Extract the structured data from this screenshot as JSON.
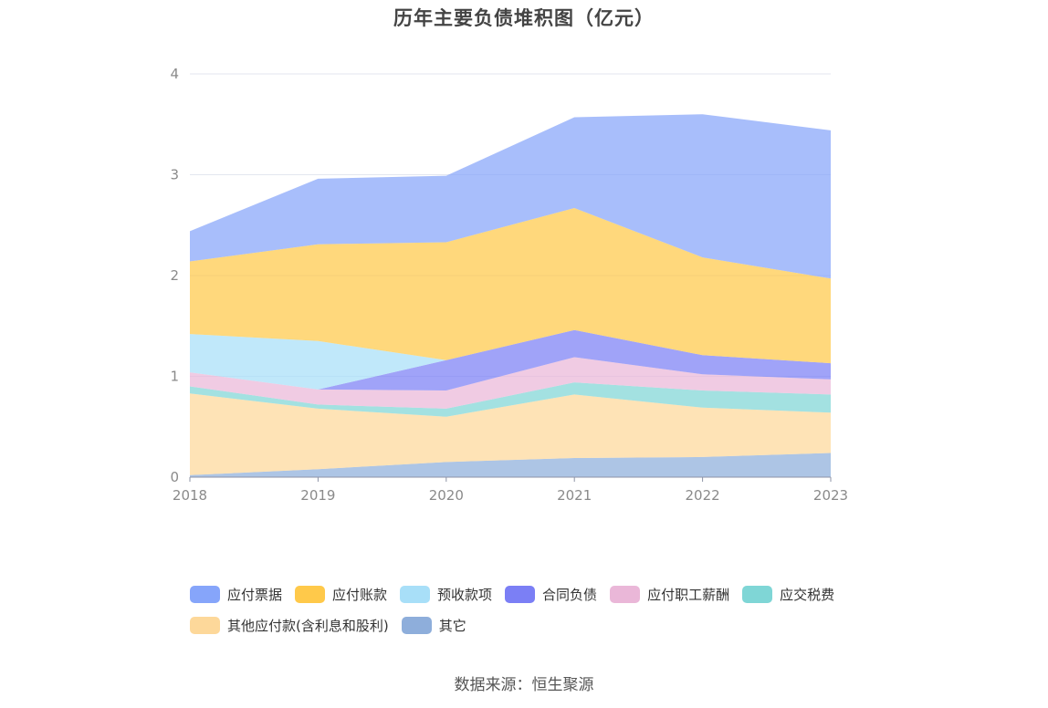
{
  "chart_data": {
    "type": "area",
    "stacked": true,
    "title": "历年主要负债堆积图（亿元）",
    "xlabel": "",
    "ylabel": "",
    "x": [
      "2018",
      "2019",
      "2020",
      "2021",
      "2022",
      "2023"
    ],
    "ylim": [
      0,
      4
    ],
    "yticks": [
      "0",
      "1",
      "2",
      "3",
      "4"
    ],
    "grid": true,
    "legend_position": "bottom",
    "series": [
      {
        "name": "其它",
        "color": "#8eaedb",
        "values": [
          0.02,
          0.08,
          0.15,
          0.19,
          0.2,
          0.24
        ]
      },
      {
        "name": "其他应付款(含利息和股利)",
        "color": "#fdd89a",
        "values": [
          0.81,
          0.6,
          0.45,
          0.63,
          0.49,
          0.4
        ]
      },
      {
        "name": "应交税费",
        "color": "#7fd6d6",
        "values": [
          0.07,
          0.04,
          0.08,
          0.12,
          0.17,
          0.18
        ]
      },
      {
        "name": "应付职工薪酬",
        "color": "#eab7d8",
        "values": [
          0.14,
          0.15,
          0.18,
          0.25,
          0.16,
          0.15
        ]
      },
      {
        "name": "合同负债",
        "color": "#7b7ff5",
        "values": [
          0.0,
          0.0,
          0.3,
          0.27,
          0.19,
          0.16
        ]
      },
      {
        "name": "预收款项",
        "color": "#a8dff8",
        "values": [
          0.38,
          0.48,
          0.0,
          0.0,
          0.0,
          0.0
        ]
      },
      {
        "name": "应付账款",
        "color": "#ffc94a",
        "values": [
          0.72,
          0.96,
          1.17,
          1.21,
          0.97,
          0.84
        ]
      },
      {
        "name": "应付票据",
        "color": "#86a5fa",
        "values": [
          0.3,
          0.65,
          0.66,
          0.9,
          1.42,
          1.47
        ]
      }
    ]
  },
  "legend": [
    {
      "label": "应付票据",
      "color": "#86a5fa"
    },
    {
      "label": "应付账款",
      "color": "#ffc94a"
    },
    {
      "label": "预收款项",
      "color": "#a8dff8"
    },
    {
      "label": "合同负债",
      "color": "#7b7ff5"
    },
    {
      "label": "应付职工薪酬",
      "color": "#eab7d8"
    },
    {
      "label": "应交税费",
      "color": "#7fd6d6"
    },
    {
      "label": "其他应付款(含利息和股利)",
      "color": "#fdd89a"
    },
    {
      "label": "其它",
      "color": "#8eaedb"
    }
  ],
  "source": "数据来源：恒生聚源"
}
